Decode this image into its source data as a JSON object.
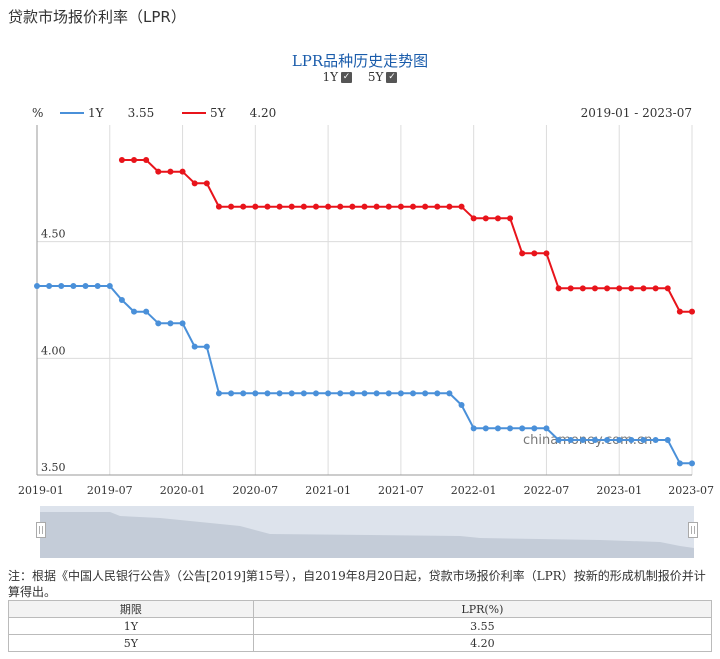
{
  "page": {
    "title": "贷款市场报价利率（LPR）"
  },
  "toggles": [
    {
      "label": "1Y",
      "checked": true
    },
    {
      "label": "5Y",
      "checked": true
    }
  ],
  "legend": [
    {
      "name": "1Y",
      "value": "3.55",
      "color": "#4a90d9"
    },
    {
      "name": "5Y",
      "value": "4.20",
      "color": "#e8141b"
    }
  ],
  "range_label": "2019-01 - 2023-07",
  "watermark": "chinamoney.com.cn",
  "note": "注：根据《中国人民银行公告》（公告[2019]第15号），自2019年8月20日起，贷款市场报价利率（LPR）按新的形成机制报价并计算得出。",
  "table": {
    "headers": [
      "期限",
      "LPR(%)"
    ],
    "rows": [
      [
        "1Y",
        "3.55"
      ],
      [
        "5Y",
        "4.20"
      ]
    ]
  },
  "chart_data": {
    "type": "line",
    "title": "LPR品种历史走势图",
    "ylabel": "%",
    "ylim": [
      3.5,
      5.0
    ],
    "yticks": [
      3.5,
      4.0,
      4.5
    ],
    "ytick_labels": [
      "3.50",
      "4.00",
      "4.50"
    ],
    "xlim": [
      "2019-01",
      "2023-07"
    ],
    "xticks": [
      "2019-01",
      "2019-07",
      "2020-01",
      "2020-07",
      "2021-01",
      "2021-07",
      "2022-01",
      "2022-07",
      "2023-01",
      "2023-07"
    ],
    "grid": true,
    "legend_position": "top-left",
    "series": [
      {
        "name": "1Y",
        "color": "#4a90d9",
        "x": [
          "2019-01",
          "2019-02",
          "2019-03",
          "2019-04",
          "2019-05",
          "2019-06",
          "2019-07",
          "2019-08",
          "2019-09",
          "2019-10",
          "2019-11",
          "2019-12",
          "2020-01",
          "2020-02",
          "2020-03",
          "2020-04",
          "2020-05",
          "2020-06",
          "2020-07",
          "2020-08",
          "2020-09",
          "2020-10",
          "2020-11",
          "2020-12",
          "2021-01",
          "2021-02",
          "2021-03",
          "2021-04",
          "2021-05",
          "2021-06",
          "2021-07",
          "2021-08",
          "2021-09",
          "2021-10",
          "2021-11",
          "2021-12",
          "2022-01",
          "2022-02",
          "2022-03",
          "2022-04",
          "2022-05",
          "2022-06",
          "2022-07",
          "2022-08",
          "2022-09",
          "2022-10",
          "2022-11",
          "2022-12",
          "2023-01",
          "2023-02",
          "2023-03",
          "2023-04",
          "2023-05",
          "2023-06",
          "2023-07"
        ],
        "values": [
          4.31,
          4.31,
          4.31,
          4.31,
          4.31,
          4.31,
          4.31,
          4.25,
          4.2,
          4.2,
          4.15,
          4.15,
          4.15,
          4.05,
          4.05,
          3.85,
          3.85,
          3.85,
          3.85,
          3.85,
          3.85,
          3.85,
          3.85,
          3.85,
          3.85,
          3.85,
          3.85,
          3.85,
          3.85,
          3.85,
          3.85,
          3.85,
          3.85,
          3.85,
          3.85,
          3.8,
          3.7,
          3.7,
          3.7,
          3.7,
          3.7,
          3.7,
          3.7,
          3.65,
          3.65,
          3.65,
          3.65,
          3.65,
          3.65,
          3.65,
          3.65,
          3.65,
          3.65,
          3.55,
          3.55
        ]
      },
      {
        "name": "5Y",
        "color": "#e8141b",
        "x": [
          "2019-08",
          "2019-09",
          "2019-10",
          "2019-11",
          "2019-12",
          "2020-01",
          "2020-02",
          "2020-03",
          "2020-04",
          "2020-05",
          "2020-06",
          "2020-07",
          "2020-08",
          "2020-09",
          "2020-10",
          "2020-11",
          "2020-12",
          "2021-01",
          "2021-02",
          "2021-03",
          "2021-04",
          "2021-05",
          "2021-06",
          "2021-07",
          "2021-08",
          "2021-09",
          "2021-10",
          "2021-11",
          "2021-12",
          "2022-01",
          "2022-02",
          "2022-03",
          "2022-04",
          "2022-05",
          "2022-06",
          "2022-07",
          "2022-08",
          "2022-09",
          "2022-10",
          "2022-11",
          "2022-12",
          "2023-01",
          "2023-02",
          "2023-03",
          "2023-04",
          "2023-05",
          "2023-06",
          "2023-07"
        ],
        "values": [
          4.85,
          4.85,
          4.85,
          4.8,
          4.8,
          4.8,
          4.75,
          4.75,
          4.65,
          4.65,
          4.65,
          4.65,
          4.65,
          4.65,
          4.65,
          4.65,
          4.65,
          4.65,
          4.65,
          4.65,
          4.65,
          4.65,
          4.65,
          4.65,
          4.65,
          4.65,
          4.65,
          4.65,
          4.65,
          4.6,
          4.6,
          4.6,
          4.6,
          4.45,
          4.45,
          4.45,
          4.3,
          4.3,
          4.3,
          4.3,
          4.3,
          4.3,
          4.3,
          4.3,
          4.3,
          4.3,
          4.2,
          4.2
        ]
      }
    ]
  }
}
